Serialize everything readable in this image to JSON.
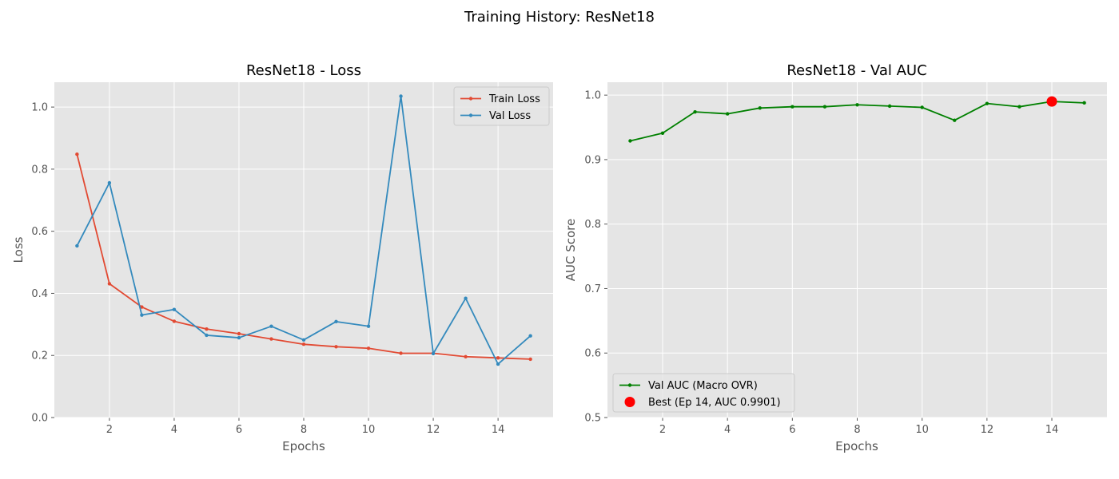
{
  "figure": {
    "suptitle": "Training History: ResNet18"
  },
  "chart_data": [
    {
      "type": "line",
      "title": "ResNet18 - Loss",
      "xlabel": "Epochs",
      "ylabel": "Loss",
      "xlim": [
        0.3,
        15.7
      ],
      "ylim": [
        0.0,
        1.08
      ],
      "xticks": [
        2,
        4,
        6,
        8,
        10,
        12,
        14
      ],
      "yticks": [
        0.0,
        0.2,
        0.4,
        0.6,
        0.8,
        1.0
      ],
      "ytick_labels": [
        "0.0",
        "0.2",
        "0.4",
        "0.6",
        "0.8",
        "1.0"
      ],
      "grid": true,
      "legend_position": "upper right",
      "x": [
        1,
        2,
        3,
        4,
        5,
        6,
        7,
        8,
        9,
        10,
        11,
        12,
        13,
        14,
        15
      ],
      "series": [
        {
          "name": "Train Loss",
          "color": "#e24a33",
          "values": [
            0.848,
            0.431,
            0.356,
            0.31,
            0.285,
            0.27,
            0.253,
            0.236,
            0.228,
            0.223,
            0.207,
            0.207,
            0.196,
            0.192,
            0.188
          ]
        },
        {
          "name": "Val Loss",
          "color": "#348abd",
          "values": [
            0.553,
            0.756,
            0.33,
            0.348,
            0.265,
            0.257,
            0.294,
            0.25,
            0.309,
            0.294,
            1.035,
            0.206,
            0.384,
            0.172,
            0.263
          ]
        }
      ]
    },
    {
      "type": "line",
      "title": "ResNet18 - Val AUC",
      "xlabel": "Epochs",
      "ylabel": "AUC Score",
      "xlim": [
        0.3,
        15.7
      ],
      "ylim": [
        0.5,
        1.02
      ],
      "xticks": [
        2,
        4,
        6,
        8,
        10,
        12,
        14
      ],
      "yticks": [
        0.5,
        0.6,
        0.7,
        0.8,
        0.9,
        1.0
      ],
      "ytick_labels": [
        "0.5",
        "0.6",
        "0.7",
        "0.8",
        "0.9",
        "1.0"
      ],
      "grid": true,
      "legend_position": "lower left",
      "x": [
        1,
        2,
        3,
        4,
        5,
        6,
        7,
        8,
        9,
        10,
        11,
        12,
        13,
        14,
        15
      ],
      "series": [
        {
          "name": "Val AUC (Macro OVR)",
          "color": "#008000",
          "values": [
            0.929,
            0.941,
            0.974,
            0.971,
            0.98,
            0.982,
            0.982,
            0.985,
            0.983,
            0.981,
            0.961,
            0.987,
            0.982,
            0.9901,
            0.988
          ]
        }
      ],
      "best_point": {
        "name": "Best (Ep 14, AUC 0.9901)",
        "x": 14,
        "y": 0.9901,
        "color": "#ff0000"
      }
    }
  ]
}
